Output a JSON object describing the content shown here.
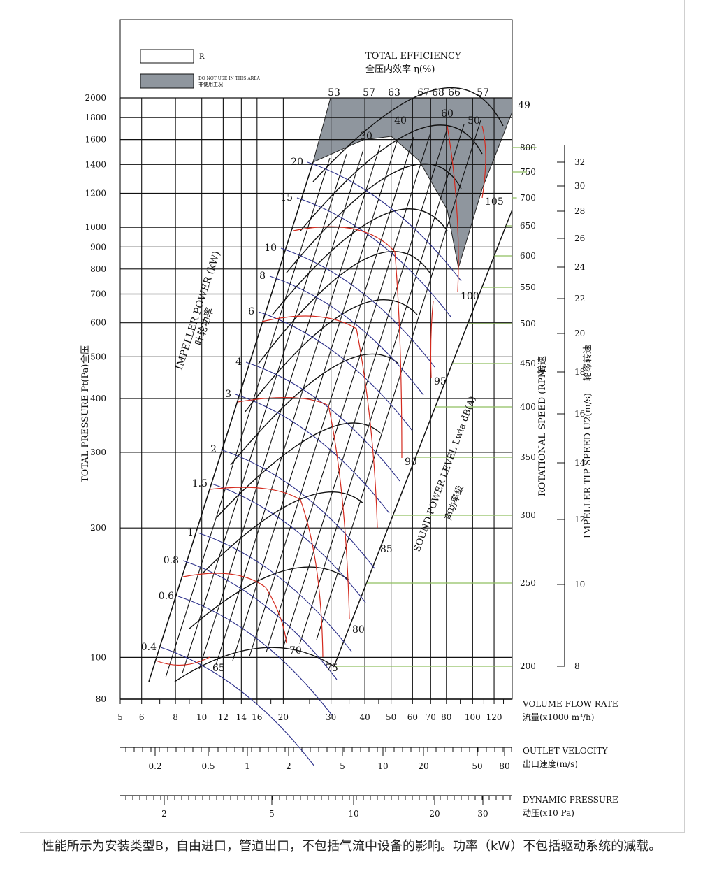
{
  "chart_data": {
    "type": "line",
    "title": "TOTAL EFFICIENCY",
    "title_cn": "全压内效率 η(%)",
    "legend": [
      {
        "label": "R",
        "style": "white box"
      },
      {
        "label": "DO NOT USE IN THIS AREA",
        "label_cn": "非使用工况",
        "style": "grey box"
      }
    ],
    "ylabel": "TOTAL PRESSURE Pt(Pa)",
    "ylabel_cn": "全压",
    "xlabel": "VOLUME FLOW RATE",
    "xlabel_cn": "流量(x1000 m³/h)",
    "log_scale": true,
    "y_ticks": [
      "2000",
      "1800",
      "1600",
      "1400",
      "1200",
      "1000",
      "900",
      "800",
      "700",
      "600",
      "500",
      "400",
      "300",
      "200",
      "100",
      "80"
    ],
    "y_tick_values": [
      2000,
      1800,
      1600,
      1400,
      1200,
      1000,
      900,
      800,
      700,
      600,
      500,
      400,
      300,
      200,
      100,
      80
    ],
    "x_ticks": [
      "5",
      "6",
      "8",
      "10",
      "12",
      "14",
      "16",
      "20",
      "30",
      "40",
      "50",
      "60",
      "70",
      "80",
      "100",
      "120"
    ],
    "x_tick_values": [
      5,
      6,
      8,
      10,
      12,
      14,
      16,
      20,
      30,
      40,
      50,
      60,
      70,
      80,
      100,
      120
    ],
    "rpm_axis": {
      "label": "ROTATIONAL SPEED (RPM)",
      "label_cn": "转速",
      "ticks": [
        "800",
        "750",
        "700",
        "650",
        "600",
        "550",
        "500",
        "450",
        "400",
        "350",
        "300",
        "250",
        "200"
      ],
      "values": [
        800,
        750,
        700,
        650,
        600,
        550,
        500,
        450,
        400,
        350,
        300,
        250,
        200
      ]
    },
    "tip_speed_axis": {
      "label": "IMPELLER TIP SPEED U2(m/s)",
      "label_cn": "轮缘转速",
      "ticks": [
        "32",
        "30",
        "28",
        "26",
        "24",
        "22",
        "20",
        "18",
        "16",
        "14",
        "12",
        "10",
        "8"
      ],
      "values": [
        32,
        30,
        28,
        26,
        24,
        22,
        20,
        18,
        16,
        14,
        12,
        10,
        8
      ]
    },
    "efficiency_labels": [
      "53",
      "57",
      "63",
      "67",
      "68",
      "66",
      "57",
      "49",
      "40",
      "30",
      "60",
      "50"
    ],
    "power_axis": {
      "label": "IMPELLER POWER (kW)",
      "label_cn": "叶轮功率",
      "ticks": [
        "20",
        "15",
        "10",
        "8",
        "6",
        "4",
        "3",
        "2",
        "1.5",
        "1",
        "0.8",
        "0.6",
        "0.4"
      ],
      "values": [
        20,
        15,
        10,
        8,
        6,
        4,
        3,
        2,
        1.5,
        1,
        0.8,
        0.6,
        0.4
      ]
    },
    "sound_axis": {
      "label": "SOUND POWER LEVEL Lwia dB(A)",
      "label_cn": "声功率级",
      "ticks": [
        "105",
        "100",
        "95",
        "90",
        "85",
        "80",
        "75",
        "70",
        "65"
      ],
      "values": [
        105,
        100,
        95,
        90,
        85,
        80,
        75,
        70,
        65
      ]
    },
    "outlet_velocity": {
      "label": "OUTLET VELOCITY",
      "label_cn": "出口速度(m/s)",
      "ticks": [
        "0.2",
        "0.5",
        "1",
        "2",
        "5",
        "10",
        "20",
        "50",
        "80"
      ],
      "values": [
        0.2,
        0.5,
        1,
        2,
        5,
        10,
        20,
        50,
        80
      ]
    },
    "dynamic_pressure": {
      "label": "DYNAMIC PRESSURE",
      "label_cn": "动压(x10 Pa)",
      "ticks": [
        "2",
        "5",
        "10",
        "20",
        "30"
      ],
      "values": [
        2,
        5,
        10,
        20,
        30
      ]
    }
  },
  "footer_note": "性能所示为安装类型B，自由进口，管道出口，不包括气流中设备的影响。功率（kW）不包括驱动系统的减载。",
  "colors": {
    "grid": "#111111",
    "power": "#2b2f8a",
    "sound": "#d42a1e",
    "rpm_line": "#8fbf5f",
    "danger": "#8f969e"
  }
}
